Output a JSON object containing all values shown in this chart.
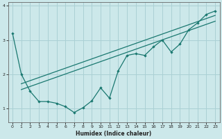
{
  "xlabel": "Humidex (Indice chaleur)",
  "background_color": "#cce8ea",
  "grid_color": "#aad0d4",
  "line_color": "#1a7870",
  "xlim": [
    -0.5,
    23.5
  ],
  "ylim": [
    0.6,
    4.1
  ],
  "yticks": [
    1,
    2,
    3,
    4
  ],
  "xticks": [
    0,
    1,
    2,
    3,
    4,
    5,
    6,
    7,
    8,
    9,
    10,
    11,
    12,
    13,
    14,
    15,
    16,
    17,
    18,
    19,
    20,
    21,
    22,
    23
  ],
  "line_jagged": {
    "x": [
      0,
      1,
      2,
      3,
      4,
      5,
      6,
      7,
      8,
      9,
      10,
      11,
      12,
      13,
      14,
      15,
      16,
      17,
      18,
      19,
      20,
      21,
      22,
      23
    ],
    "y": [
      3.2,
      2.0,
      1.5,
      1.2,
      1.2,
      1.15,
      1.05,
      0.88,
      1.02,
      1.22,
      1.6,
      1.3,
      2.1,
      2.55,
      2.6,
      2.55,
      2.8,
      3.0,
      2.65,
      2.88,
      3.3,
      3.5,
      3.75,
      3.85
    ]
  },
  "line_trend1": {
    "x": [
      1,
      23
    ],
    "y": [
      1.72,
      3.72
    ]
  },
  "line_trend2": {
    "x": [
      1,
      23
    ],
    "y": [
      1.55,
      3.55
    ]
  }
}
